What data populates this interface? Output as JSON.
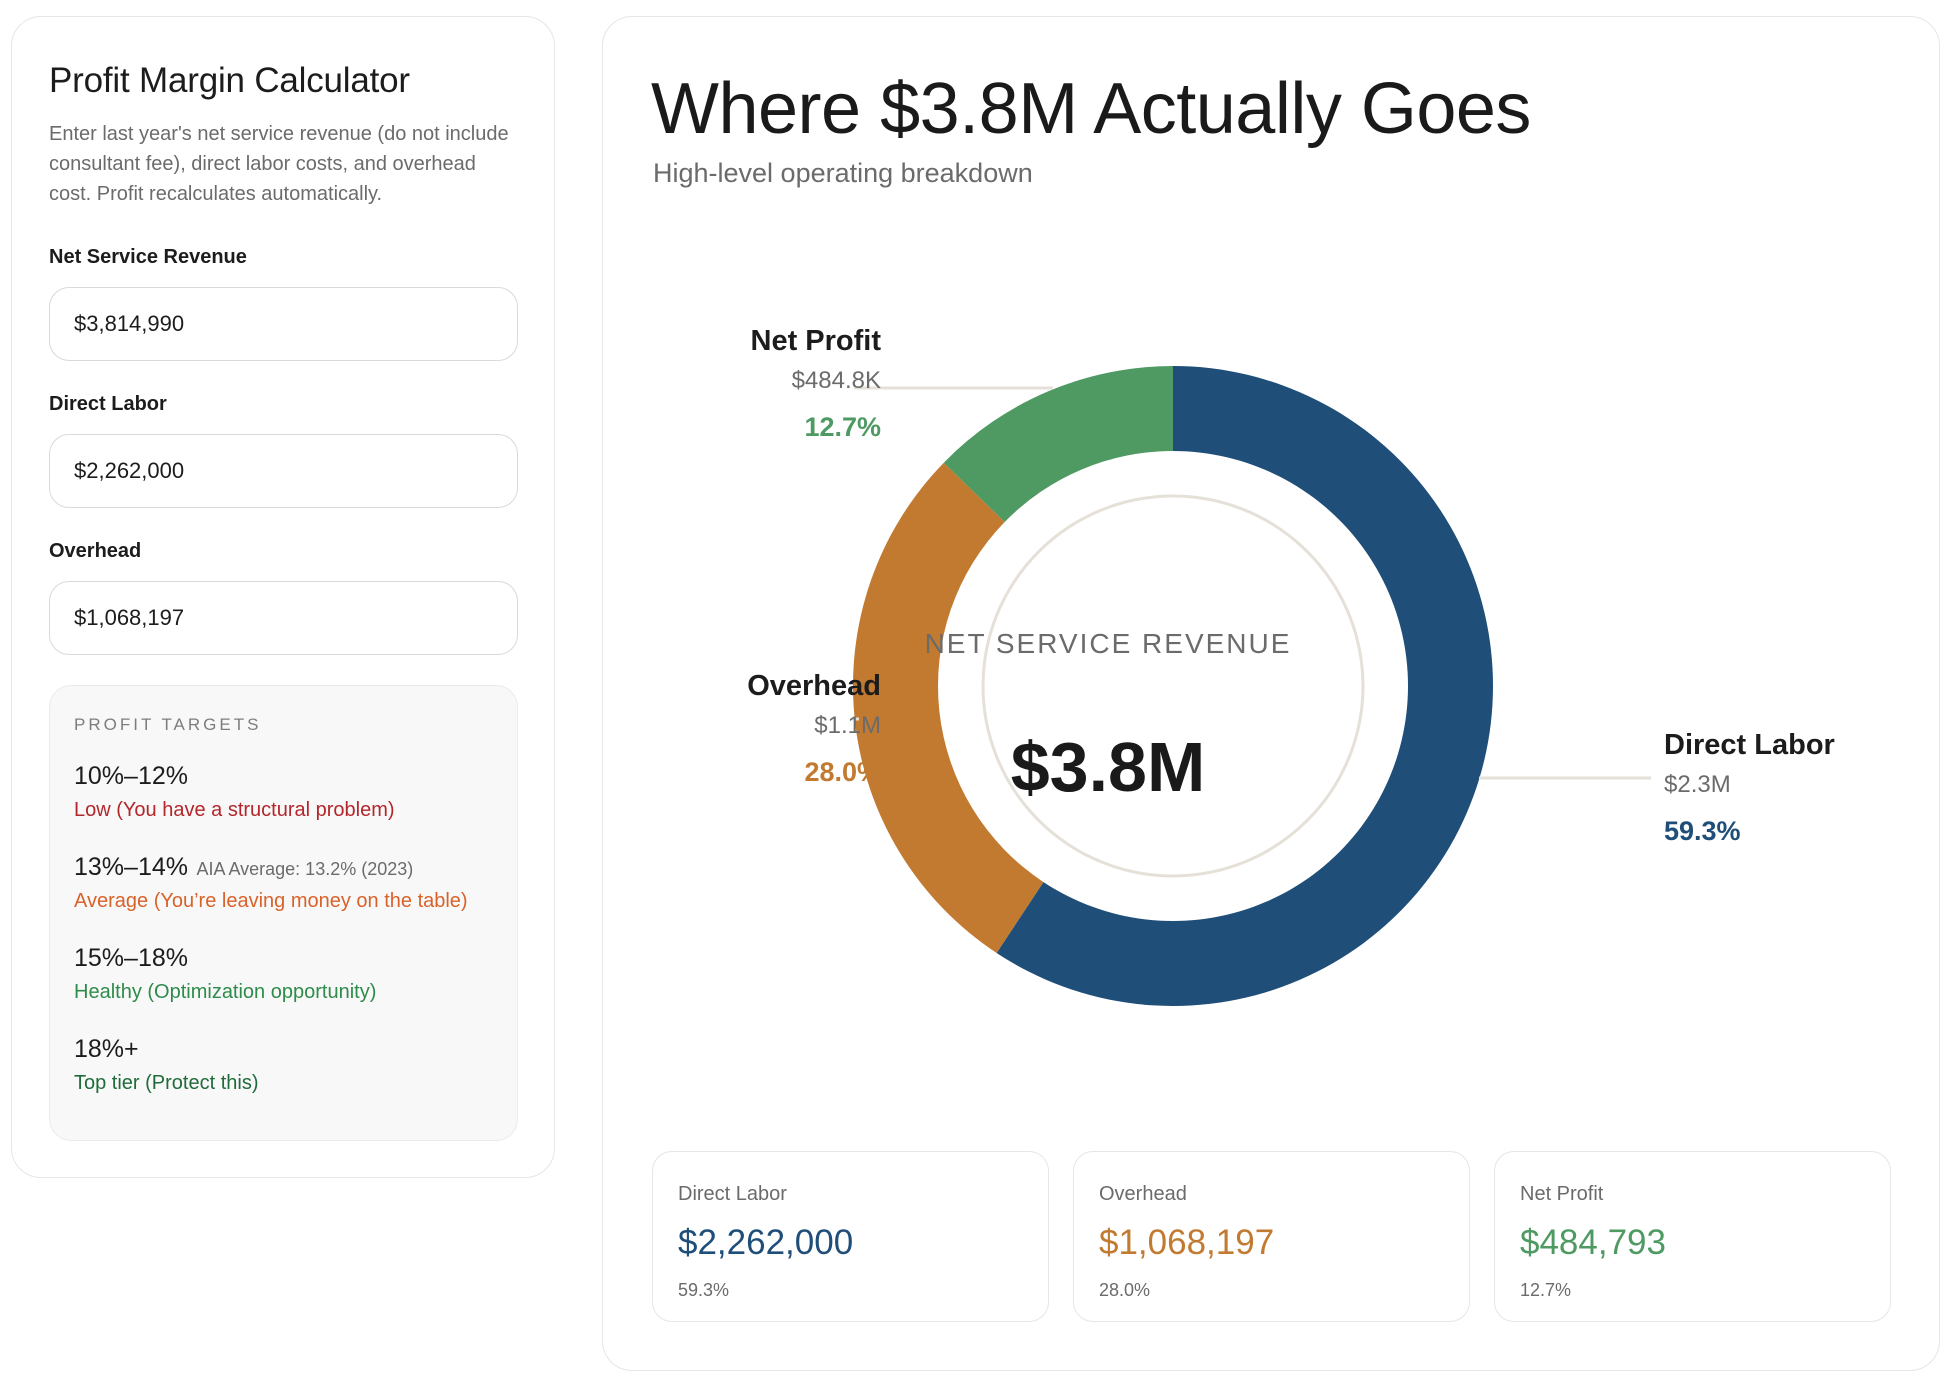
{
  "calculator": {
    "title": "Profit Margin Calculator",
    "description": "Enter last year's net service revenue (do not include consultant fee), direct labor costs, and overhead cost. Profit recalculates automatically.",
    "fields": [
      {
        "label": "Net Service Revenue",
        "value": "$3,814,990"
      },
      {
        "label": "Direct Labor",
        "value": "$2,262,000"
      },
      {
        "label": "Overhead",
        "value": "$1,068,197"
      }
    ],
    "targets": {
      "heading": "PROFIT TARGETS",
      "tiers": [
        {
          "range": "10%–12%",
          "note": "",
          "description": "Low (You have a structural problem)"
        },
        {
          "range": "13%–14%",
          "note": "AIA Average: 13.2% (2023)",
          "description": "Average (You’re leaving money on the table)"
        },
        {
          "range": "15%–18%",
          "note": "",
          "description": "Healthy (Optimization opportunity)"
        },
        {
          "range": "18%+",
          "note": "",
          "description": "Top tier (Protect this)"
        }
      ]
    }
  },
  "breakdown": {
    "title": "Where $3.8M Actually Goes",
    "subtitle": "High-level operating breakdown",
    "center_label": "NET SERVICE REVENUE",
    "center_value": "$3.8M",
    "callouts": {
      "net_profit": {
        "name": "Net Profit",
        "amount": "$484.8K",
        "percent": "12.7%"
      },
      "overhead": {
        "name": "Overhead",
        "amount": "$1.1M",
        "percent": "28.0%"
      },
      "direct_labor": {
        "name": "Direct Labor",
        "amount": "$2.3M",
        "percent": "59.3%"
      }
    },
    "cards": [
      {
        "label": "Direct Labor",
        "value": "$2,262,000",
        "percent": "59.3%"
      },
      {
        "label": "Overhead",
        "value": "$1,068,197",
        "percent": "28.0%"
      },
      {
        "label": "Net Profit",
        "value": "$484,793",
        "percent": "12.7%"
      }
    ]
  },
  "chart_data": {
    "type": "pie",
    "categories": [
      "Direct Labor",
      "Overhead",
      "Net Profit"
    ],
    "values": [
      2262000,
      1068197,
      484793
    ],
    "percentages": [
      59.3,
      28.0,
      12.7
    ],
    "total": 3814990
  },
  "colors": {
    "direct_labor": "#1f4e79",
    "overhead": "#c27a30",
    "net_profit": "#4e9a62",
    "leader_line": "#e5e0d8",
    "inner_ring": "#e5e0d8"
  }
}
